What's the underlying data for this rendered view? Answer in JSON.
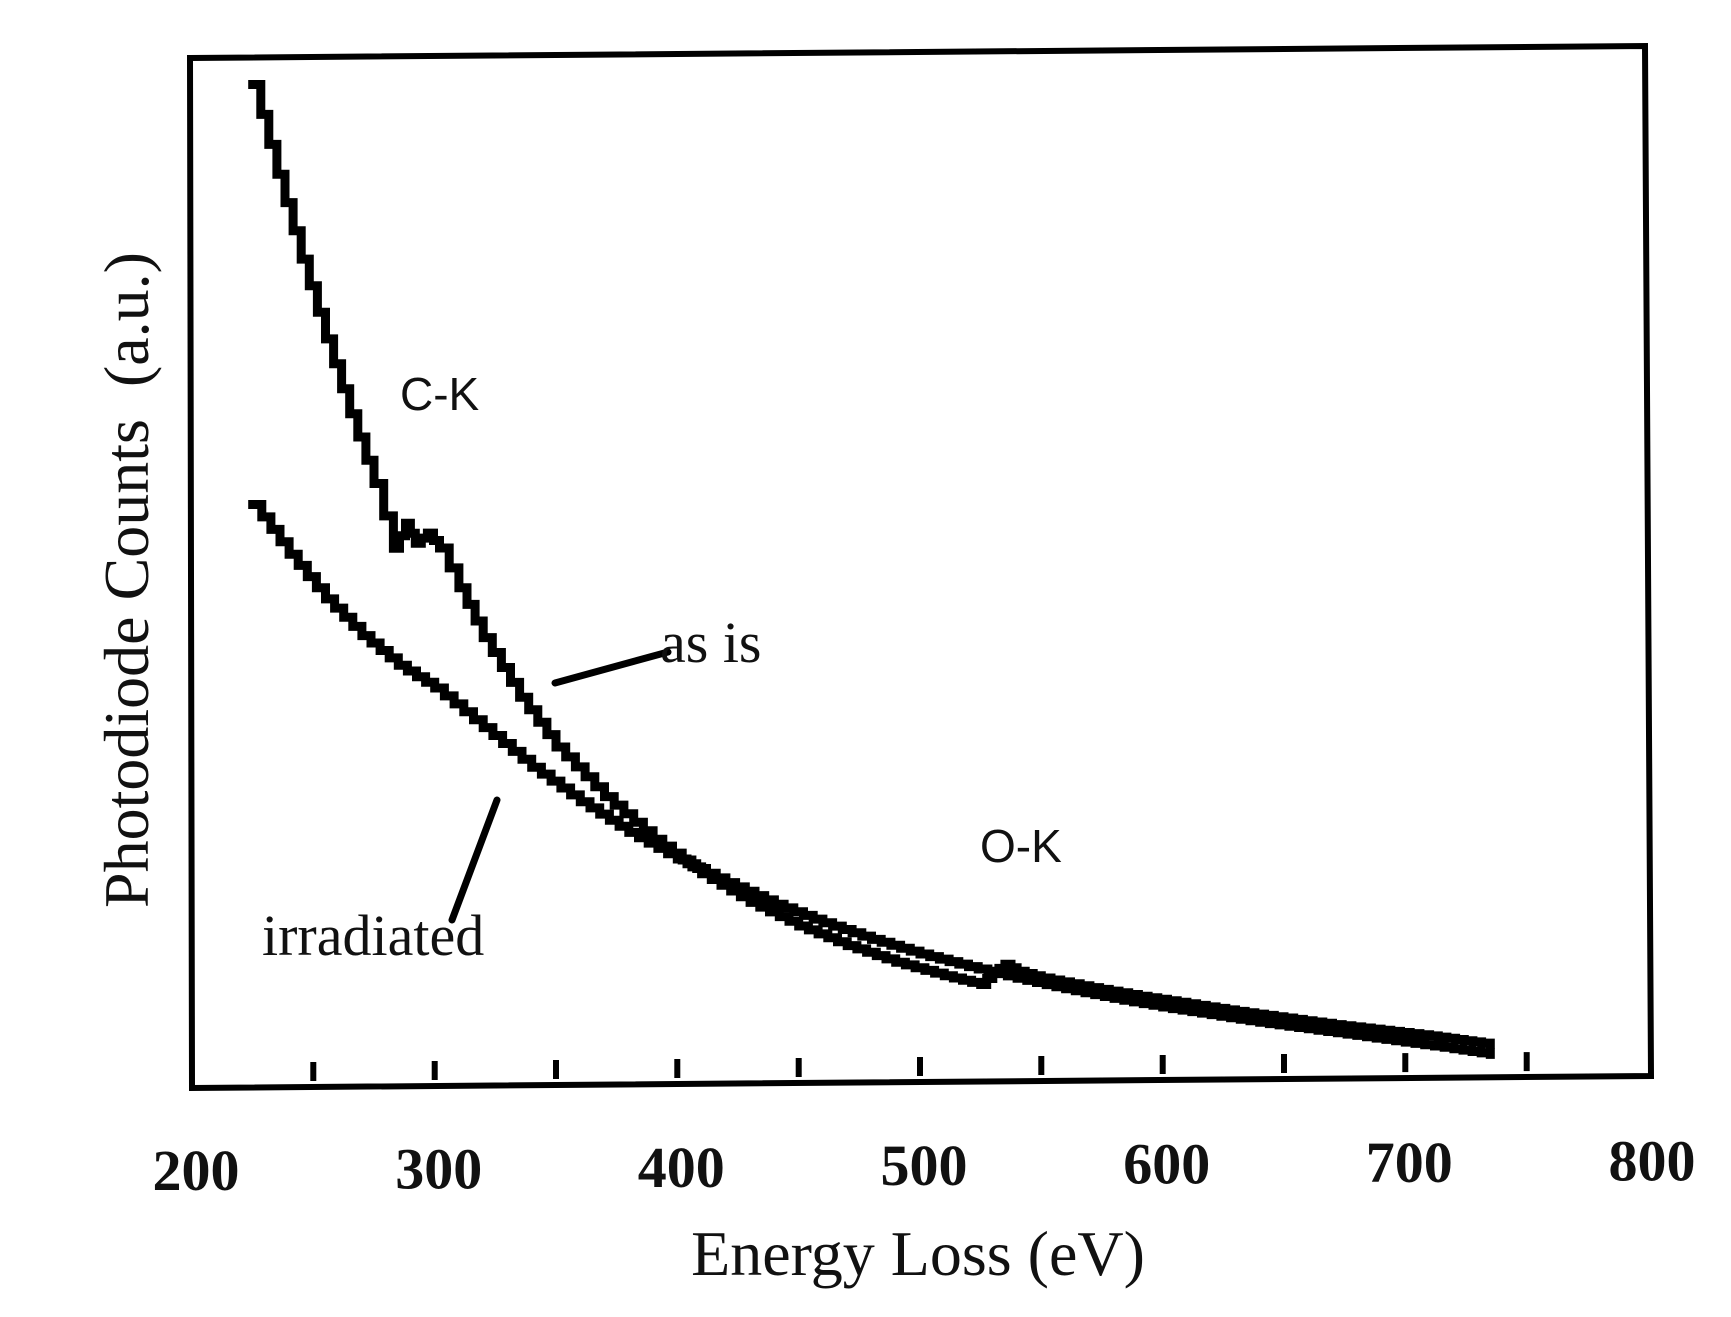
{
  "chart_data": {
    "type": "line",
    "title": "",
    "xlabel": "Energy Loss (eV)",
    "ylabel": "Photodiode Counts  (a.u.)",
    "xlim": [
      200,
      800
    ],
    "ylim": [
      0,
      100
    ],
    "xticks": [
      200,
      300,
      400,
      500,
      600,
      700,
      800
    ],
    "minor_xticks": [
      250,
      350,
      450,
      550,
      650,
      750
    ],
    "y_ticks_labeled": false,
    "grid": false,
    "legend": "none",
    "series": [
      {
        "name": "as is",
        "x": [
          225,
          235,
          245,
          255,
          265,
          275,
          283,
          288,
          292,
          297,
          302,
          310,
          320,
          335,
          350,
          370,
          390,
          410,
          430,
          450,
          470,
          490,
          510,
          525,
          530,
          535,
          540,
          550,
          570,
          590,
          610,
          630,
          650,
          670,
          690,
          710,
          735
        ],
        "y": [
          100,
          91,
          82.5,
          74.5,
          67,
          60,
          53.5,
          56,
          54,
          55,
          53.5,
          49.5,
          44.5,
          38.5,
          33.5,
          28.5,
          24.2,
          20.7,
          17.8,
          15.4,
          13.4,
          11.7,
          10.3,
          9.4,
          10.6,
          11.4,
          10.7,
          10.0,
          9.0,
          8.1,
          7.3,
          6.5,
          5.8,
          5.1,
          4.5,
          3.9,
          3.0
        ]
      },
      {
        "name": "irradiated",
        "x": [
          225,
          240,
          255,
          270,
          285,
          300,
          320,
          340,
          360,
          380,
          400,
          420,
          440,
          460,
          480,
          500,
          520,
          540,
          560,
          580,
          600,
          620,
          640,
          660,
          680,
          700,
          720,
          735
        ],
        "y": [
          58,
          53,
          48.5,
          44.8,
          41.8,
          39.5,
          35.5,
          31.5,
          28.0,
          24.9,
          22.2,
          19.8,
          17.6,
          15.7,
          14.0,
          12.5,
          11.2,
          10.0,
          8.9,
          7.9,
          7.0,
          6.2,
          5.4,
          4.7,
          4.0,
          3.3,
          2.6,
          2.0
        ]
      }
    ],
    "annotations": [
      {
        "text": "C-K",
        "x": 290,
        "y": 67
      },
      {
        "text": "O-K",
        "x": 545,
        "y": 20
      }
    ]
  }
}
